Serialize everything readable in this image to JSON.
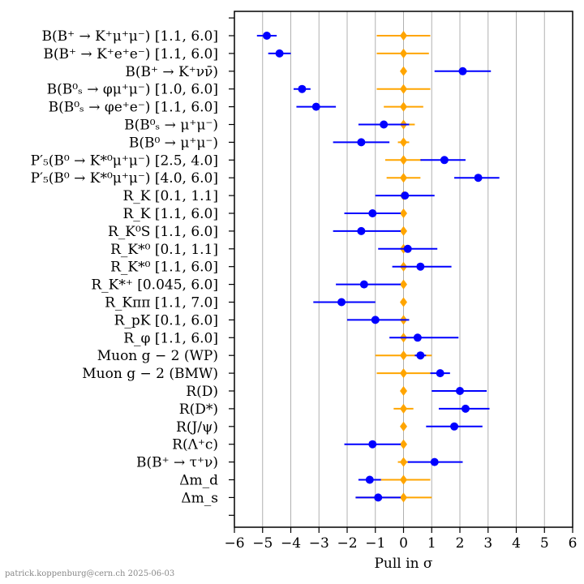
{
  "chart_data": {
    "type": "scatter",
    "xlabel": "Pull in σ",
    "xlim": [
      -6,
      6
    ],
    "xticks": [
      -6,
      -5,
      -4,
      -3,
      -2,
      -1,
      0,
      1,
      2,
      3,
      4,
      5,
      6
    ],
    "xtick_labels": [
      "−6",
      "−5",
      "−4",
      "−3",
      "−2",
      "−1",
      "0",
      "1",
      "2",
      "3",
      "4",
      "5",
      "6"
    ],
    "grid": "vertical",
    "colors": {
      "measurement": "#0000ff",
      "prediction": "#ffa500"
    },
    "observables": [
      {
        "label": "B(B⁺ → K⁺μ⁺μ⁻) [1.1, 6.0]",
        "meas": -4.85,
        "meas_lo": -5.2,
        "meas_hi": -4.5,
        "pred": 0.0,
        "pred_lo": -0.95,
        "pred_hi": 0.95
      },
      {
        "label": "B(B⁺ → K⁺e⁺e⁻) [1.1, 6.0]",
        "meas": -4.4,
        "meas_lo": -4.8,
        "meas_hi": -4.0,
        "pred": 0.0,
        "pred_lo": -0.95,
        "pred_hi": 0.9
      },
      {
        "label": "B(B⁺ → K⁺νν̄)",
        "meas": 2.1,
        "meas_lo": 1.1,
        "meas_hi": 3.1,
        "pred": 0.0,
        "pred_lo": -0.1,
        "pred_hi": 0.1
      },
      {
        "label": "B(B⁰ₛ → φμ⁺μ⁻) [1.0, 6.0]",
        "meas": -3.6,
        "meas_lo": -3.9,
        "meas_hi": -3.3,
        "pred": 0.0,
        "pred_lo": -0.95,
        "pred_hi": 0.95
      },
      {
        "label": "B(B⁰ₛ → φe⁺e⁻) [1.1, 6.0]",
        "meas": -3.1,
        "meas_lo": -3.8,
        "meas_hi": -2.4,
        "pred": 0.0,
        "pred_lo": -0.7,
        "pred_hi": 0.7
      },
      {
        "label": "B(B⁰ₛ → μ⁺μ⁻)",
        "meas": -0.7,
        "meas_lo": -1.6,
        "meas_hi": 0.2,
        "pred": 0.0,
        "pred_lo": -0.4,
        "pred_hi": 0.4
      },
      {
        "label": "B(B⁰ → μ⁺μ⁻)",
        "meas": -1.5,
        "meas_lo": -2.5,
        "meas_hi": -0.5,
        "pred": 0.0,
        "pred_lo": -0.2,
        "pred_hi": 0.2
      },
      {
        "label": "P′₅(B⁰ → K*⁰μ⁺μ⁻) [2.5, 4.0]",
        "meas": 1.45,
        "meas_lo": 0.6,
        "meas_hi": 2.2,
        "pred": 0.0,
        "pred_lo": -0.65,
        "pred_hi": 0.65
      },
      {
        "label": "P′₅(B⁰ → K*⁰μ⁺μ⁻) [4.0, 6.0]",
        "meas": 2.65,
        "meas_lo": 1.8,
        "meas_hi": 3.4,
        "pred": 0.0,
        "pred_lo": -0.6,
        "pred_hi": 0.6
      },
      {
        "label": "R_K [0.1, 1.1]",
        "meas": 0.05,
        "meas_lo": -1.0,
        "meas_hi": 1.1,
        "pred": 0.0,
        "pred_lo": -0.05,
        "pred_hi": 0.05
      },
      {
        "label": "R_K [1.1, 6.0]",
        "meas": -1.1,
        "meas_lo": -2.1,
        "meas_hi": -0.1,
        "pred": 0.0,
        "pred_lo": -0.05,
        "pred_hi": 0.05
      },
      {
        "label": "R_K⁰S [1.1, 6.0]",
        "meas": -1.5,
        "meas_lo": -2.5,
        "meas_hi": -0.1,
        "pred": 0.0,
        "pred_lo": -0.05,
        "pred_hi": 0.05
      },
      {
        "label": "R_K*⁰ [0.1, 1.1]",
        "meas": 0.15,
        "meas_lo": -0.9,
        "meas_hi": 1.2,
        "pred": 0.0,
        "pred_lo": -0.1,
        "pred_hi": 0.1
      },
      {
        "label": "R_K*⁰ [1.1, 6.0]",
        "meas": 0.6,
        "meas_lo": -0.4,
        "meas_hi": 1.7,
        "pred": 0.0,
        "pred_lo": -0.05,
        "pred_hi": 0.05
      },
      {
        "label": "R_K*⁺ [0.045, 6.0]",
        "meas": -1.4,
        "meas_lo": -2.4,
        "meas_hi": -0.1,
        "pred": 0.0,
        "pred_lo": -0.05,
        "pred_hi": 0.05
      },
      {
        "label": "R_Kππ [1.1, 7.0]",
        "meas": -2.2,
        "meas_lo": -3.2,
        "meas_hi": -1.0,
        "pred": 0.0,
        "pred_lo": -0.05,
        "pred_hi": 0.05
      },
      {
        "label": "R_pK [0.1, 6.0]",
        "meas": -1.0,
        "meas_lo": -2.0,
        "meas_hi": 0.2,
        "pred": 0.0,
        "pred_lo": -0.05,
        "pred_hi": 0.05
      },
      {
        "label": "R_φ [1.1, 6.0]",
        "meas": 0.5,
        "meas_lo": -0.5,
        "meas_hi": 1.95,
        "pred": 0.0,
        "pred_lo": -0.05,
        "pred_hi": 0.05
      },
      {
        "label": "Muon g − 2 (WP)",
        "meas": 0.6,
        "meas_lo": 0.4,
        "meas_hi": 0.8,
        "pred": 0.0,
        "pred_lo": -1.0,
        "pred_hi": 1.0
      },
      {
        "label": "Muon g − 2 (BMW)",
        "meas": 1.3,
        "meas_lo": 0.95,
        "meas_hi": 1.65,
        "pred": 0.0,
        "pred_lo": -0.95,
        "pred_hi": 0.95
      },
      {
        "label": "R(D)",
        "meas": 2.0,
        "meas_lo": 1.0,
        "meas_hi": 2.95,
        "pred": 0.0,
        "pred_lo": -0.05,
        "pred_hi": 0.05
      },
      {
        "label": "R(D*)",
        "meas": 2.2,
        "meas_lo": 1.25,
        "meas_hi": 3.05,
        "pred": 0.0,
        "pred_lo": -0.35,
        "pred_hi": 0.35
      },
      {
        "label": "R(J/ψ)",
        "meas": 1.8,
        "meas_lo": 0.8,
        "meas_hi": 2.8,
        "pred": 0.0,
        "pred_lo": -0.05,
        "pred_hi": 0.05
      },
      {
        "label": "R(Λ⁺c)",
        "meas": -1.1,
        "meas_lo": -2.1,
        "meas_hi": -0.1,
        "pred": 0.0,
        "pred_lo": -0.05,
        "pred_hi": 0.05
      },
      {
        "label": "B(B⁺ → τ⁺ν)",
        "meas": 1.1,
        "meas_lo": 0.15,
        "meas_hi": 2.1,
        "pred": 0.0,
        "pred_lo": -0.2,
        "pred_hi": 0.2
      },
      {
        "label": "Δm_d",
        "meas": -1.2,
        "meas_lo": -1.6,
        "meas_hi": -0.8,
        "pred": 0.0,
        "pred_lo": -0.95,
        "pred_hi": 0.95
      },
      {
        "label": "Δm_s",
        "meas": -0.9,
        "meas_lo": -1.7,
        "meas_hi": -0.1,
        "pred": 0.0,
        "pred_lo": -1.7,
        "pred_hi": 1.0
      }
    ]
  },
  "credit": "patrick.koppenburg@cern.ch  2025-06-03"
}
